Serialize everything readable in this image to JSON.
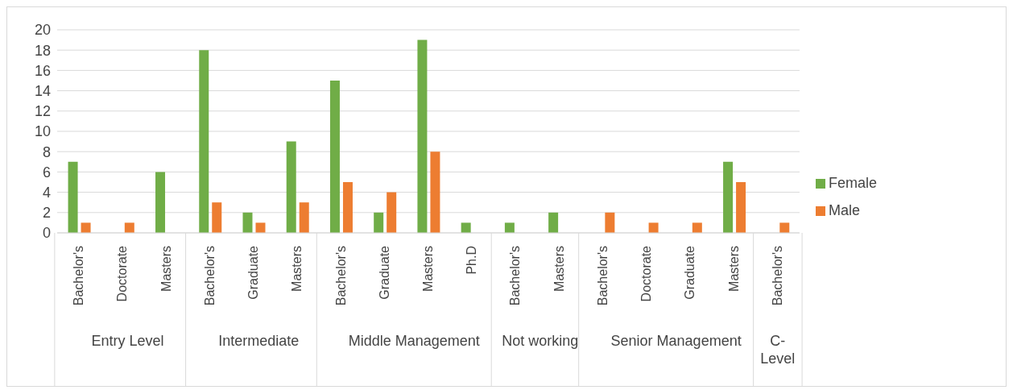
{
  "chart_data": {
    "type": "bar",
    "categories": [
      "Bachelor's",
      "Doctorate",
      "Masters",
      "Bachelor's",
      "Graduate",
      "Masters",
      "Bachelor's",
      "Graduate",
      "Masters",
      "Ph.D",
      "Bachelor's",
      "Masters",
      "Bachelor's",
      "Doctorate",
      "Graduate",
      "Masters",
      "Bachelor's"
    ],
    "series": [
      {
        "name": "Female",
        "color": "#70ad47",
        "values": [
          7,
          null,
          6,
          18,
          2,
          9,
          15,
          2,
          19,
          1,
          1,
          2,
          null,
          null,
          null,
          7,
          null
        ]
      },
      {
        "name": "Male",
        "color": "#ed7d31",
        "values": [
          1,
          1,
          null,
          3,
          1,
          3,
          5,
          4,
          8,
          null,
          null,
          null,
          2,
          1,
          1,
          5,
          1
        ]
      }
    ],
    "annotations": [
      "Entry Level",
      "Intermediate",
      "Middle Management",
      "Not working",
      "Senior Management",
      "C-Level"
    ],
    "ylim": [
      0,
      20
    ],
    "yticks": [
      0,
      2,
      4,
      6,
      8,
      10,
      12,
      14,
      16,
      18,
      20
    ],
    "grid": "y",
    "legend": "right"
  }
}
